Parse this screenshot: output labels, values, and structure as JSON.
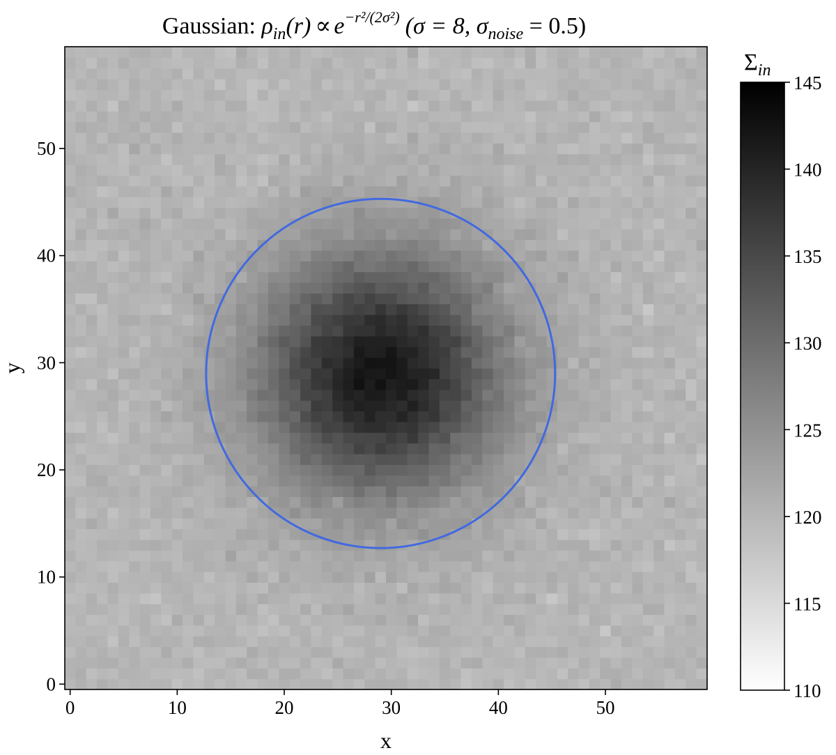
{
  "chart_data": {
    "type": "heatmap",
    "title": "Gaussian: ρin(r) ∝ e−r²/(2σ²) (σ = 8, σnoise = 0.5)",
    "title_parts": {
      "prefix": "Gaussian: ",
      "rho": "ρ",
      "rho_sub": "in",
      "arg": "(r)",
      "prop": "∝",
      "e": "e",
      "exponent": "−r²/(2σ²)",
      "params_open": "(σ = 8, σ",
      "noise_sub": "noise",
      "params_close": " = 0.5)"
    },
    "xlabel": "x",
    "ylabel": "y",
    "grid_size": [
      60,
      60
    ],
    "xlim": [
      -0.5,
      59.5
    ],
    "ylim": [
      -0.5,
      59.5
    ],
    "xticks": [
      0,
      10,
      20,
      30,
      40,
      50
    ],
    "yticks": [
      0,
      10,
      20,
      30,
      40,
      50
    ],
    "colormap": "gray_r",
    "colorbar": {
      "label_main": "Σ",
      "label_sub": "in",
      "vmin": 110,
      "vmax": 145,
      "ticks": [
        110,
        115,
        120,
        125,
        130,
        135,
        140,
        145
      ]
    },
    "field": {
      "center": [
        29,
        29
      ],
      "background": 120,
      "peak_amplitude": 22,
      "sigma": 8,
      "noise_sigma": 0.5
    },
    "circle": {
      "center": [
        29,
        29
      ],
      "radius": 16.3,
      "color": "#4169e1"
    }
  }
}
